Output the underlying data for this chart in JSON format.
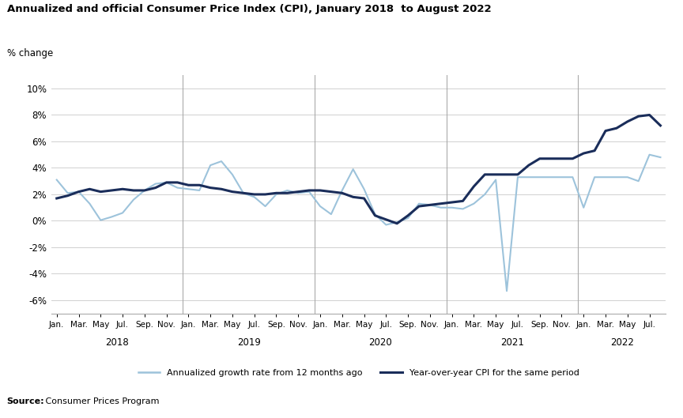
{
  "title": "Annualized and official Consumer Price Index (CPI), January 2018  to August 2022",
  "ylabel": "% change",
  "source_bold": "Source:",
  "source_rest": " Consumer Prices Program",
  "ylim": [
    -7.0,
    11.0
  ],
  "yticks": [
    -6,
    -4,
    -2,
    0,
    2,
    4,
    6,
    8,
    10
  ],
  "annualized_color": "#9dc3db",
  "yoy_color": "#1a2d5a",
  "annualized_label": "Annualized growth rate from 12 months ago",
  "yoy_label": "Year-over-year CPI for the same period",
  "background_color": "#ffffff",
  "grid_color": "#d0d0d0",
  "annualized": [
    3.1,
    2.1,
    2.2,
    1.3,
    0.05,
    0.3,
    0.6,
    1.6,
    2.3,
    2.8,
    2.9,
    2.5,
    2.4,
    2.3,
    4.2,
    4.5,
    3.5,
    2.1,
    1.8,
    1.1,
    2.0,
    2.3,
    2.1,
    2.2,
    1.1,
    0.5,
    2.3,
    3.9,
    2.4,
    0.5,
    -0.3,
    -0.1,
    0.2,
    1.3,
    1.2,
    1.0,
    1.0,
    0.9,
    1.3,
    2.0,
    3.1,
    -5.3,
    3.3,
    3.3,
    3.3,
    3.3,
    3.3,
    3.3,
    1.0,
    3.3,
    3.3,
    3.3,
    3.3,
    3.0,
    5.0,
    4.8
  ],
  "yoy": [
    1.7,
    1.9,
    2.2,
    2.4,
    2.2,
    2.3,
    2.4,
    2.3,
    2.3,
    2.5,
    2.9,
    2.9,
    2.7,
    2.7,
    2.5,
    2.4,
    2.2,
    2.1,
    2.0,
    2.0,
    2.1,
    2.1,
    2.2,
    2.3,
    2.3,
    2.2,
    2.1,
    1.8,
    1.7,
    0.4,
    0.1,
    -0.2,
    0.4,
    1.1,
    1.2,
    1.3,
    1.4,
    1.5,
    2.6,
    3.5,
    3.5,
    3.5,
    3.5,
    4.2,
    4.7,
    4.7,
    4.7,
    4.7,
    5.1,
    5.3,
    6.8,
    7.0,
    7.5,
    7.9,
    8.0,
    7.2
  ],
  "n_months": 56
}
